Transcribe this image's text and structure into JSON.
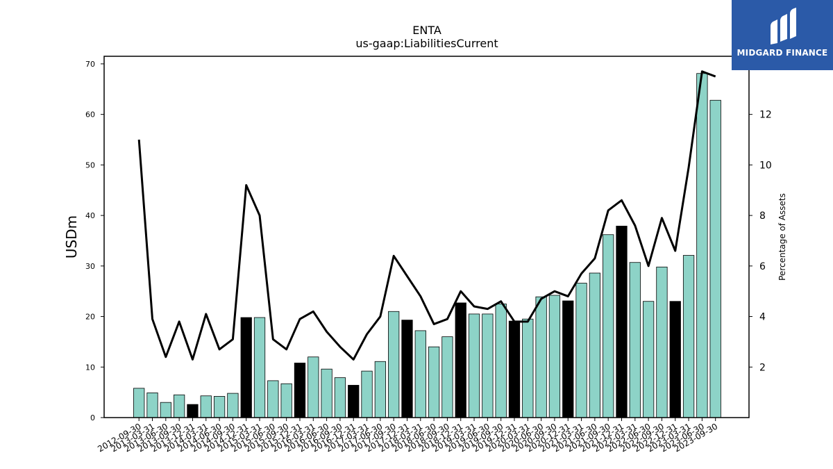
{
  "brand": {
    "name": "MIDGARD FINANCE",
    "logo_icon": "midgard-logo-icon",
    "background": "#2b5aa8"
  },
  "chart_data": {
    "type": "bar",
    "title": "ENTA",
    "subtitle": "us-gaap:LiabilitiesCurrent",
    "ylabel": "USDm",
    "y2label": "Percentage of Assets",
    "ylim": [
      0,
      71.5
    ],
    "y2lim": [
      0,
      14.3
    ],
    "yticks": [
      0,
      10,
      20,
      30,
      40,
      50,
      60,
      70
    ],
    "y2ticks": [
      2,
      4,
      6,
      8,
      10,
      12
    ],
    "bar_color": "#8dd3c7",
    "highlight_color": "#000000",
    "line_color": "#000000",
    "categories": [
      "2012-09-30",
      "2013-03-31",
      "2013-06-30",
      "2013-09-30",
      "2013-12-31",
      "2014-03-31",
      "2014-06-30",
      "2014-09-30",
      "2014-12-31",
      "2015-03-31",
      "2015-06-30",
      "2015-09-30",
      "2015-12-31",
      "2016-03-31",
      "2016-06-30",
      "2016-09-30",
      "2016-12-31",
      "2017-03-31",
      "2017-06-30",
      "2017-09-30",
      "2017-12-31",
      "2018-03-31",
      "2018-06-30",
      "2018-09-30",
      "2018-12-31",
      "2019-03-31",
      "2019-06-30",
      "2019-09-30",
      "2019-12-31",
      "2020-03-31",
      "2020-06-30",
      "2020-09-30",
      "2020-12-31",
      "2021-03-31",
      "2021-06-30",
      "2021-09-30",
      "2021-12-31",
      "2022-03-31",
      "2022-06-30",
      "2022-09-30",
      "2022-12-31",
      "2023-03-31",
      "2023-06-30",
      "2023-09-30"
    ],
    "series": [
      {
        "kind": "bar",
        "axis": "left",
        "values": [
          5.8,
          4.9,
          3.0,
          4.5,
          2.6,
          4.3,
          4.2,
          4.8,
          19.8,
          19.8,
          7.3,
          6.7,
          10.8,
          12.0,
          9.6,
          7.9,
          6.4,
          9.2,
          11.1,
          21.0,
          19.3,
          17.2,
          14.0,
          16.0,
          22.7,
          20.5,
          20.5,
          22.5,
          19.1,
          19.5,
          23.9,
          24.2,
          23.1,
          26.6,
          28.6,
          36.2,
          37.9,
          30.7,
          23.0,
          29.8,
          23.0,
          32.1,
          68.1,
          62.8
        ],
        "highlighted": [
          false,
          false,
          false,
          false,
          true,
          false,
          false,
          false,
          true,
          false,
          false,
          false,
          true,
          false,
          false,
          false,
          true,
          false,
          false,
          false,
          true,
          false,
          false,
          false,
          true,
          false,
          false,
          false,
          true,
          false,
          false,
          false,
          true,
          false,
          false,
          false,
          true,
          false,
          false,
          false,
          true,
          false,
          false,
          false
        ]
      },
      {
        "kind": "line",
        "axis": "right",
        "values": [
          11.0,
          3.9,
          2.4,
          3.8,
          2.3,
          4.1,
          2.7,
          3.1,
          9.2,
          8.0,
          3.1,
          2.7,
          3.9,
          4.2,
          3.4,
          2.8,
          2.3,
          3.3,
          4.0,
          6.4,
          5.6,
          4.8,
          3.7,
          3.9,
          5.0,
          4.4,
          4.3,
          4.6,
          3.8,
          3.8,
          4.7,
          5.0,
          4.8,
          5.7,
          6.3,
          8.2,
          8.6,
          7.6,
          6.0,
          7.9,
          6.6,
          9.9,
          13.7,
          13.5
        ]
      }
    ]
  }
}
